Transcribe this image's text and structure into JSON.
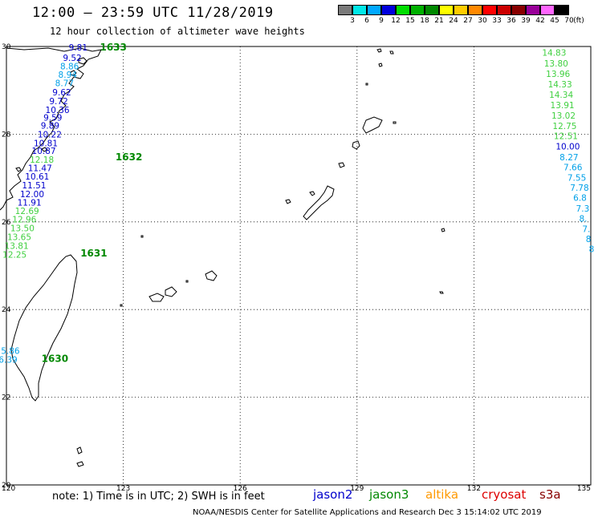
{
  "header": {
    "title": "12:00 – 23:59 UTC 11/28/2019",
    "subtitle": "12 hour collection of altimeter wave heights"
  },
  "legend": {
    "unit": "(ft)",
    "bins": [
      {
        "label": "3",
        "color": "#7a7a7a"
      },
      {
        "label": "6",
        "color": "#00e8e8"
      },
      {
        "label": "9",
        "color": "#00a8ff"
      },
      {
        "label": "12",
        "color": "#0000dd"
      },
      {
        "label": "15",
        "color": "#00dd00"
      },
      {
        "label": "18",
        "color": "#00b000"
      },
      {
        "label": "21",
        "color": "#008800"
      },
      {
        "label": "24",
        "color": "#ffff00"
      },
      {
        "label": "27",
        "color": "#ffcc00"
      },
      {
        "label": "30",
        "color": "#ff8800"
      },
      {
        "label": "33",
        "color": "#ff0000"
      },
      {
        "label": "36",
        "color": "#cc0000"
      },
      {
        "label": "39",
        "color": "#880000"
      },
      {
        "label": "42",
        "color": "#990099"
      },
      {
        "label": "45",
        "color": "#ff66ff"
      },
      {
        "label": "70",
        "color": "#000000"
      }
    ]
  },
  "axes": {
    "lat_labels": [
      "30",
      "28",
      "26",
      "24",
      "22",
      "20"
    ],
    "lon_labels": [
      "120",
      "123",
      "126",
      "129",
      "132",
      "135"
    ],
    "lat_range": [
      20,
      30
    ],
    "lon_range": [
      120,
      135
    ]
  },
  "passes": [
    {
      "label": "1633",
      "lon": 122.4,
      "lat": 30.0
    },
    {
      "label": "1632",
      "lon": 122.8,
      "lat": 27.5
    },
    {
      "label": "1631",
      "lon": 121.9,
      "lat": 25.3
    },
    {
      "label": "1630",
      "lon": 120.9,
      "lat": 22.9
    }
  ],
  "track_colors": {
    "dark": "#0000cc",
    "light_blue": "#00a0e8",
    "green": "#40d040"
  },
  "tracks": [
    {
      "points": [
        {
          "v": "9.81",
          "lon": 121.6,
          "lat": 29.98,
          "c": "dark"
        },
        {
          "v": "9.52",
          "lon": 121.45,
          "lat": 29.74,
          "c": "dark"
        },
        {
          "v": "8.86",
          "lon": 121.38,
          "lat": 29.55,
          "c": "light_blue"
        },
        {
          "v": "8.94",
          "lon": 121.33,
          "lat": 29.36,
          "c": "light_blue"
        },
        {
          "v": "8.77",
          "lon": 121.25,
          "lat": 29.17,
          "c": "light_blue"
        },
        {
          "v": "9.62",
          "lon": 121.18,
          "lat": 28.96,
          "c": "dark"
        },
        {
          "v": "9.72",
          "lon": 121.1,
          "lat": 28.76,
          "c": "dark"
        },
        {
          "v": "10.36",
          "lon": 121.0,
          "lat": 28.56,
          "c": "dark"
        },
        {
          "v": "9.59",
          "lon": 120.95,
          "lat": 28.38,
          "c": "dark"
        },
        {
          "v": "9.89",
          "lon": 120.88,
          "lat": 28.2,
          "c": "dark"
        },
        {
          "v": "10.22",
          "lon": 120.8,
          "lat": 28.0,
          "c": "dark"
        },
        {
          "v": "10.81",
          "lon": 120.7,
          "lat": 27.8,
          "c": "dark"
        },
        {
          "v": "10.87",
          "lon": 120.65,
          "lat": 27.62,
          "c": "dark"
        },
        {
          "v": "12.18",
          "lon": 120.6,
          "lat": 27.42,
          "c": "green"
        },
        {
          "v": "11.47",
          "lon": 120.55,
          "lat": 27.23,
          "c": "dark"
        },
        {
          "v": "10.61",
          "lon": 120.48,
          "lat": 27.04,
          "c": "dark"
        },
        {
          "v": "11.51",
          "lon": 120.4,
          "lat": 26.84,
          "c": "dark"
        },
        {
          "v": "12.00",
          "lon": 120.35,
          "lat": 26.64,
          "c": "dark"
        },
        {
          "v": "11.91",
          "lon": 120.28,
          "lat": 26.44,
          "c": "dark"
        },
        {
          "v": "12.69",
          "lon": 120.22,
          "lat": 26.25,
          "c": "green"
        },
        {
          "v": "12.96",
          "lon": 120.15,
          "lat": 26.06,
          "c": "green"
        },
        {
          "v": "13.50",
          "lon": 120.1,
          "lat": 25.86,
          "c": "green"
        },
        {
          "v": "13.65",
          "lon": 120.02,
          "lat": 25.66,
          "c": "green"
        },
        {
          "v": "13.81",
          "lon": 119.95,
          "lat": 25.46,
          "c": "green"
        },
        {
          "v": "12.25",
          "lon": 119.9,
          "lat": 25.26,
          "c": "green"
        },
        {
          "v": "5.86",
          "lon": 119.86,
          "lat": 23.06,
          "c": "light_blue"
        },
        {
          "v": "6.39",
          "lon": 119.8,
          "lat": 22.86,
          "c": "light_blue"
        }
      ]
    },
    {
      "points": [
        {
          "v": "14.83",
          "lon": 133.75,
          "lat": 29.86,
          "c": "green"
        },
        {
          "v": "13.80",
          "lon": 133.8,
          "lat": 29.62,
          "c": "green"
        },
        {
          "v": "13.96",
          "lon": 133.85,
          "lat": 29.38,
          "c": "green"
        },
        {
          "v": "14.33",
          "lon": 133.9,
          "lat": 29.14,
          "c": "green"
        },
        {
          "v": "14.34",
          "lon": 133.93,
          "lat": 28.9,
          "c": "green"
        },
        {
          "v": "13.91",
          "lon": 133.96,
          "lat": 28.67,
          "c": "green"
        },
        {
          "v": "13.02",
          "lon": 133.99,
          "lat": 28.43,
          "c": "green"
        },
        {
          "v": "12.75",
          "lon": 134.02,
          "lat": 28.19,
          "c": "green"
        },
        {
          "v": "12.51",
          "lon": 134.05,
          "lat": 27.96,
          "c": "green"
        },
        {
          "v": "10.00",
          "lon": 134.1,
          "lat": 27.72,
          "c": "dark"
        },
        {
          "v": "8.27",
          "lon": 134.2,
          "lat": 27.48,
          "c": "light_blue"
        },
        {
          "v": "7.66",
          "lon": 134.3,
          "lat": 27.25,
          "c": "light_blue"
        },
        {
          "v": "7.55",
          "lon": 134.4,
          "lat": 27.01,
          "c": "light_blue"
        },
        {
          "v": "7.78",
          "lon": 134.47,
          "lat": 26.78,
          "c": "light_blue"
        },
        {
          "v": "6.8",
          "lon": 134.55,
          "lat": 26.55,
          "c": "light_blue"
        },
        {
          "v": "7.3",
          "lon": 134.62,
          "lat": 26.31,
          "c": "light_blue"
        },
        {
          "v": "8.",
          "lon": 134.7,
          "lat": 26.08,
          "c": "light_blue"
        },
        {
          "v": "7.",
          "lon": 134.78,
          "lat": 25.84,
          "c": "light_blue"
        },
        {
          "v": "8",
          "lon": 134.87,
          "lat": 25.61,
          "c": "light_blue"
        },
        {
          "v": "8",
          "lon": 134.95,
          "lat": 25.38,
          "c": "light_blue"
        }
      ]
    }
  ],
  "footer": {
    "note": "note: 1) Time is in UTC; 2) SWH is in feet",
    "satellites": [
      {
        "name": "jason2",
        "color": "#0000cc"
      },
      {
        "name": "jason3",
        "color": "#008800"
      },
      {
        "name": "altika",
        "color": "#ff9900"
      },
      {
        "name": "cryosat",
        "color": "#dd0000"
      },
      {
        "name": "s3a",
        "color": "#880000"
      }
    ],
    "credit": "NOAA/NESDIS Center for Satellite Applications and Research    Dec  3 15:14:02 UTC 2019"
  }
}
